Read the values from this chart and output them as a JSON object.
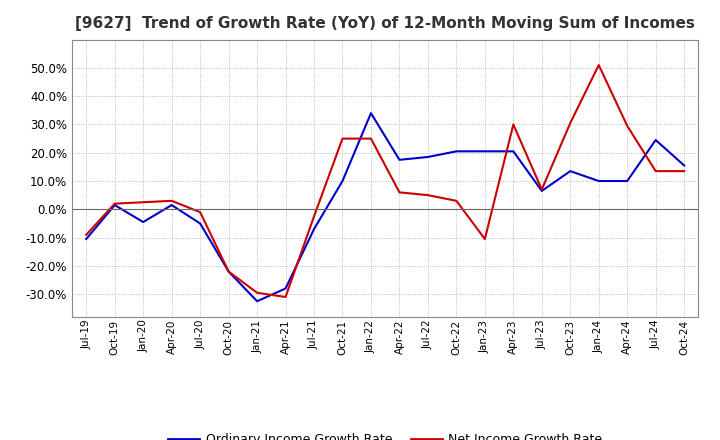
{
  "title": "[9627]  Trend of Growth Rate (YoY) of 12-Month Moving Sum of Incomes",
  "title_fontsize": 11,
  "background_color": "#ffffff",
  "grid_color": "#aaaaaa",
  "ordinary_color": "#0000cc",
  "net_color": "#cc0000",
  "legend_labels": [
    "Ordinary Income Growth Rate",
    "Net Income Growth Rate"
  ],
  "x_labels": [
    "Jul-19",
    "Oct-19",
    "Jan-20",
    "Apr-20",
    "Jul-20",
    "Oct-20",
    "Jan-21",
    "Apr-21",
    "Jul-21",
    "Oct-21",
    "Jan-22",
    "Apr-22",
    "Jul-22",
    "Oct-22",
    "Jan-23",
    "Apr-23",
    "Jul-23",
    "Oct-23",
    "Jan-24",
    "Apr-24",
    "Jul-24",
    "Oct-24"
  ],
  "ordinary_y": [
    -0.105,
    0.015,
    -0.045,
    0.015,
    -0.05,
    -0.22,
    -0.325,
    -0.28,
    -0.07,
    0.1,
    0.34,
    0.175,
    0.185,
    0.205,
    0.205,
    0.205,
    0.065,
    0.135,
    0.1,
    0.1,
    0.245,
    0.155
  ],
  "net_y": [
    -0.09,
    0.02,
    0.025,
    0.03,
    -0.01,
    -0.22,
    -0.295,
    -0.31,
    -0.025,
    0.25,
    0.25,
    0.06,
    0.05,
    0.03,
    -0.105,
    0.3,
    0.07,
    0.305,
    0.51,
    0.295,
    0.135,
    0.135
  ],
  "ylim": [
    -0.38,
    0.6
  ],
  "ytick_min": -0.3,
  "ytick_max": 0.5,
  "ytick_step": 0.1
}
